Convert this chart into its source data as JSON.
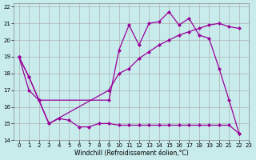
{
  "xlabel": "Windchill (Refroidissement éolien,°C)",
  "background_color": "#c8ecec",
  "grid_color": "#b0b0b0",
  "line_color": "#990099",
  "xlim": [
    -0.5,
    23
  ],
  "ylim": [
    14,
    22.2
  ],
  "xticks": [
    0,
    1,
    2,
    3,
    4,
    5,
    6,
    7,
    8,
    9,
    10,
    11,
    12,
    13,
    14,
    15,
    16,
    17,
    18,
    19,
    20,
    21,
    22,
    23
  ],
  "yticks": [
    14,
    15,
    16,
    17,
    18,
    19,
    20,
    21,
    22
  ],
  "curve1_x": [
    0,
    1,
    2,
    9,
    10,
    11,
    12,
    13,
    14,
    15,
    16,
    17,
    18,
    19,
    20,
    21,
    22
  ],
  "curve1_y": [
    19.0,
    17.8,
    16.4,
    16.4,
    19.4,
    20.9,
    19.7,
    21.0,
    21.1,
    21.7,
    20.9,
    21.3,
    20.3,
    20.1,
    18.3,
    16.4,
    14.4
  ],
  "curve2_x": [
    0,
    1,
    2,
    3,
    9,
    10,
    11,
    12,
    13,
    14,
    15,
    16,
    17,
    18,
    19,
    20,
    21,
    22
  ],
  "curve2_y": [
    19.0,
    17.0,
    16.4,
    15.0,
    17.0,
    18.0,
    18.3,
    18.9,
    19.3,
    19.7,
    20.0,
    20.3,
    20.5,
    20.7,
    20.9,
    21.0,
    20.8,
    20.7
  ],
  "curve3_x": [
    0,
    1,
    2,
    3,
    4,
    5,
    6,
    7,
    8,
    9,
    10,
    11,
    12,
    13,
    14,
    15,
    16,
    17,
    18,
    19,
    20,
    21,
    22
  ],
  "curve3_y": [
    19.0,
    17.8,
    16.4,
    15.0,
    15.3,
    15.2,
    14.8,
    14.8,
    15.0,
    15.0,
    14.9,
    14.9,
    14.9,
    14.9,
    14.9,
    14.9,
    14.9,
    14.9,
    14.9,
    14.9,
    14.9,
    14.9,
    14.4
  ],
  "marker_size": 2.5,
  "linewidth": 0.9
}
